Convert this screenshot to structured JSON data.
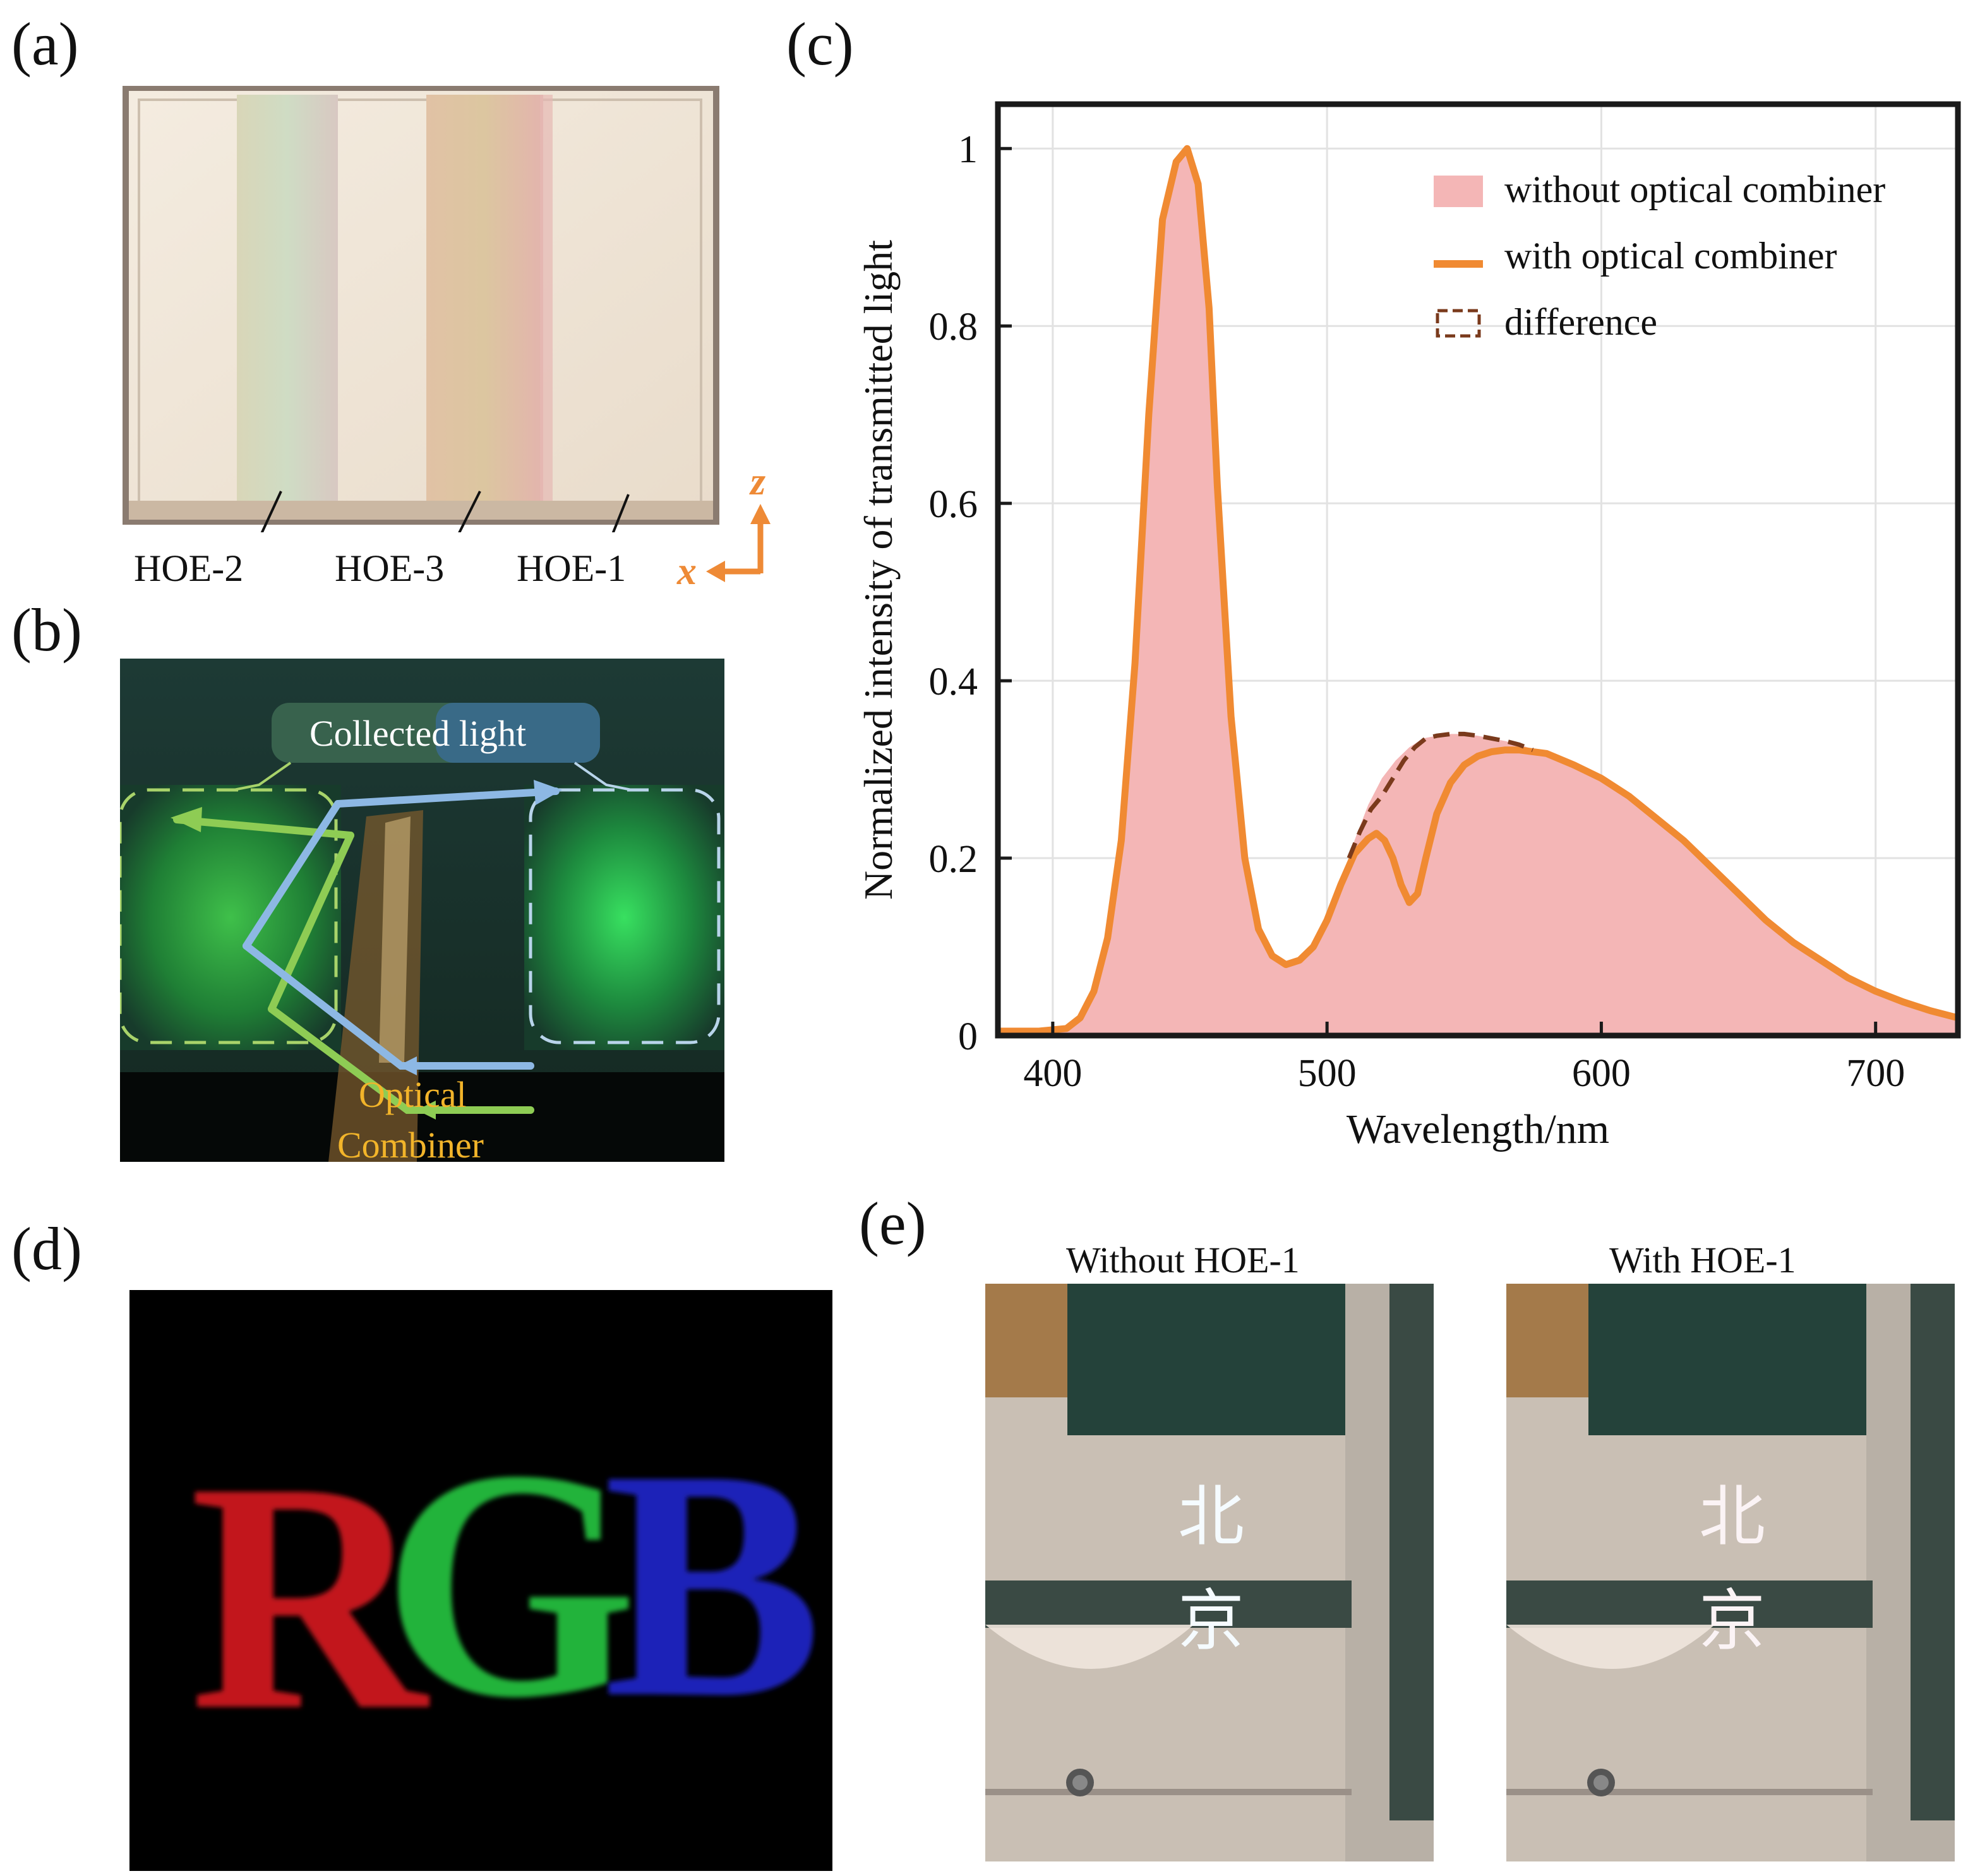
{
  "panels": {
    "a": {
      "label": "(a)",
      "hoe_labels": [
        "HOE-2",
        "HOE-3",
        "HOE-1"
      ],
      "axis_x": "x",
      "axis_z": "z",
      "accent": "#ee8a36"
    },
    "b": {
      "label": "(b)",
      "collected_light": "Collected light",
      "optical": "Optical",
      "combiner": "Combiner"
    },
    "c": {
      "label": "(c)"
    },
    "d": {
      "label": "(d)",
      "letters": [
        "R",
        "G",
        "B"
      ]
    },
    "e": {
      "label": "(e)",
      "left_title": "Without HOE-1",
      "right_title": "With HOE-1",
      "chars": [
        "北",
        "京"
      ]
    }
  },
  "chart_data": {
    "type": "area",
    "xlabel": "Wavelength/nm",
    "ylabel": "Normalized intensity of transmitted light",
    "xlim": [
      380,
      730
    ],
    "ylim": [
      0,
      1.05
    ],
    "xticks": [
      400,
      500,
      600,
      700
    ],
    "yticks": [
      0,
      0.2,
      0.4,
      0.6,
      0.8,
      1
    ],
    "ytick_labels": [
      "0",
      "0.2",
      "0.4",
      "0.6",
      "0.8",
      "1"
    ],
    "grid": true,
    "legend_placement": "top-right",
    "legend": [
      "without optical combiner",
      "with optical combiner",
      "difference"
    ],
    "colors": {
      "fill": "#f4b6b6",
      "line": "#f08a32",
      "difference": "#7a3a1c"
    },
    "series": [
      {
        "name": "without optical combiner",
        "x": [
          380,
          395,
          405,
          410,
          415,
          420,
          425,
          430,
          435,
          440,
          445,
          449,
          453,
          457,
          460,
          465,
          470,
          475,
          480,
          485,
          490,
          495,
          500,
          505,
          510,
          515,
          520,
          525,
          530,
          535,
          540,
          545,
          550,
          555,
          560,
          565,
          570,
          580,
          590,
          600,
          610,
          620,
          630,
          640,
          650,
          660,
          670,
          680,
          690,
          700,
          710,
          720,
          730
        ],
        "y": [
          0.005,
          0.005,
          0.008,
          0.02,
          0.05,
          0.11,
          0.22,
          0.42,
          0.7,
          0.92,
          0.985,
          1.0,
          0.96,
          0.82,
          0.62,
          0.36,
          0.2,
          0.12,
          0.09,
          0.08,
          0.085,
          0.1,
          0.13,
          0.17,
          0.22,
          0.26,
          0.29,
          0.31,
          0.325,
          0.335,
          0.338,
          0.34,
          0.34,
          0.338,
          0.335,
          0.332,
          0.328,
          0.318,
          0.305,
          0.29,
          0.27,
          0.245,
          0.22,
          0.19,
          0.16,
          0.13,
          0.105,
          0.085,
          0.065,
          0.05,
          0.038,
          0.028,
          0.02
        ]
      },
      {
        "name": "with optical combiner",
        "x": [
          380,
          395,
          405,
          410,
          415,
          420,
          425,
          430,
          435,
          440,
          445,
          449,
          453,
          457,
          460,
          465,
          470,
          475,
          480,
          485,
          490,
          495,
          500,
          505,
          510,
          515,
          518,
          521,
          524,
          527,
          530,
          533,
          536,
          540,
          545,
          550,
          555,
          560,
          565,
          570,
          580,
          590,
          600,
          610,
          620,
          630,
          640,
          650,
          660,
          670,
          680,
          690,
          700,
          710,
          720,
          730
        ],
        "y": [
          0.005,
          0.005,
          0.008,
          0.02,
          0.05,
          0.11,
          0.22,
          0.42,
          0.7,
          0.92,
          0.985,
          1.0,
          0.96,
          0.82,
          0.62,
          0.36,
          0.2,
          0.12,
          0.09,
          0.08,
          0.085,
          0.1,
          0.13,
          0.17,
          0.205,
          0.222,
          0.228,
          0.22,
          0.2,
          0.17,
          0.15,
          0.16,
          0.2,
          0.25,
          0.285,
          0.305,
          0.315,
          0.32,
          0.322,
          0.322,
          0.318,
          0.305,
          0.29,
          0.27,
          0.245,
          0.22,
          0.19,
          0.16,
          0.13,
          0.105,
          0.085,
          0.065,
          0.05,
          0.038,
          0.028,
          0.02
        ]
      },
      {
        "name": "difference",
        "x": [
          508,
          512,
          516,
          520,
          524,
          528,
          532,
          536,
          540,
          545,
          550,
          555,
          560,
          565,
          570,
          575
        ],
        "y": [
          0.2,
          0.23,
          0.255,
          0.27,
          0.29,
          0.31,
          0.325,
          0.335,
          0.338,
          0.34,
          0.34,
          0.338,
          0.335,
          0.332,
          0.328,
          0.322
        ]
      }
    ]
  }
}
